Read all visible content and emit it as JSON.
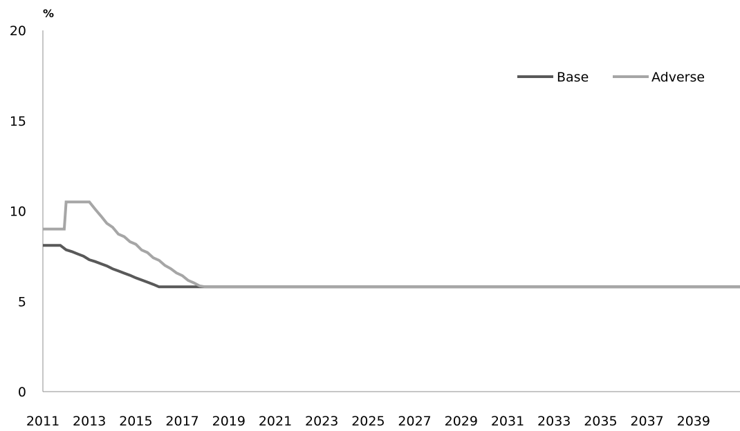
{
  "chart_data": {
    "type": "line",
    "title": "",
    "ylabel": "%",
    "xlabel": "",
    "ylim": [
      0,
      20
    ],
    "yticks": [
      0,
      5,
      10,
      15,
      20
    ],
    "xlim": [
      2011,
      2041
    ],
    "xticks": [
      2011,
      2013,
      2015,
      2017,
      2019,
      2021,
      2023,
      2025,
      2027,
      2029,
      2031,
      2033,
      2035,
      2037,
      2039
    ],
    "grid": false,
    "legend_position": "top-right",
    "series": [
      {
        "name": "Base",
        "color": "#595959",
        "points": [
          [
            2011.0,
            8.1
          ],
          [
            2011.75,
            8.1
          ],
          [
            2012.0,
            7.85
          ],
          [
            2012.25,
            7.75
          ],
          [
            2012.5,
            7.62
          ],
          [
            2012.75,
            7.5
          ],
          [
            2013.0,
            7.3
          ],
          [
            2013.25,
            7.2
          ],
          [
            2013.5,
            7.08
          ],
          [
            2013.75,
            6.96
          ],
          [
            2014.0,
            6.8
          ],
          [
            2014.25,
            6.68
          ],
          [
            2014.5,
            6.56
          ],
          [
            2014.75,
            6.44
          ],
          [
            2015.0,
            6.3
          ],
          [
            2015.25,
            6.18
          ],
          [
            2015.5,
            6.06
          ],
          [
            2015.75,
            5.94
          ],
          [
            2016.0,
            5.8
          ],
          [
            2017.0,
            5.8
          ],
          [
            2018.0,
            5.8
          ],
          [
            2041.0,
            5.8
          ]
        ]
      },
      {
        "name": "Adverse",
        "color": "#a6a6a6",
        "points": [
          [
            2011.0,
            9.0
          ],
          [
            2011.92,
            9.0
          ],
          [
            2012.0,
            10.5
          ],
          [
            2013.0,
            10.5
          ],
          [
            2013.25,
            10.1
          ],
          [
            2013.5,
            9.72
          ],
          [
            2013.75,
            9.32
          ],
          [
            2014.0,
            9.1
          ],
          [
            2014.25,
            8.72
          ],
          [
            2014.5,
            8.58
          ],
          [
            2014.75,
            8.3
          ],
          [
            2015.0,
            8.16
          ],
          [
            2015.25,
            7.84
          ],
          [
            2015.5,
            7.7
          ],
          [
            2015.75,
            7.41
          ],
          [
            2016.0,
            7.27
          ],
          [
            2016.25,
            6.99
          ],
          [
            2016.5,
            6.81
          ],
          [
            2016.75,
            6.57
          ],
          [
            2017.0,
            6.42
          ],
          [
            2017.25,
            6.16
          ],
          [
            2017.5,
            6.02
          ],
          [
            2017.75,
            5.85
          ],
          [
            2018.0,
            5.8
          ],
          [
            2041.0,
            5.8
          ]
        ]
      }
    ]
  }
}
